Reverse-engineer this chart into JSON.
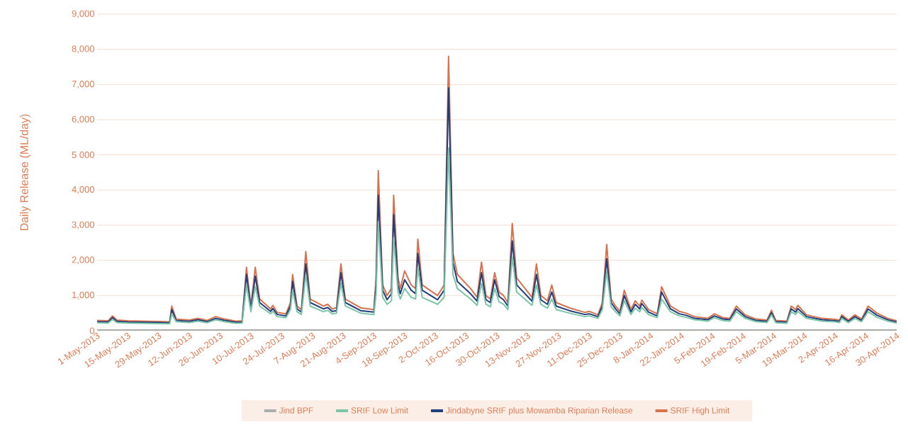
{
  "chart_data": {
    "type": "line",
    "ylabel": "Daily Release (ML/day)",
    "grid": "y",
    "legend": "bottom",
    "xlim": [
      "2013-05-01",
      "2014-04-30"
    ],
    "ylim": [
      0,
      9000
    ],
    "yticks": [
      0,
      {
        "value": 1000,
        "label": "1,000"
      },
      {
        "value": 2000,
        "label": "2,000"
      },
      {
        "value": 3000,
        "label": "3,000"
      },
      {
        "value": 4000,
        "label": "4,000"
      },
      {
        "value": 5000,
        "label": "5 000"
      },
      {
        "value": 6000,
        "label": "6,000"
      },
      {
        "value": 7000,
        "label": "7,000"
      },
      {
        "value": 8000,
        "label": "8,000"
      },
      {
        "value": 9000,
        "label": "9,000"
      }
    ],
    "xticks": [
      {
        "value": "2013-05-01",
        "label": "1-May-2013"
      },
      {
        "value": "2013-05-15",
        "label": "15-May-2013"
      },
      {
        "value": "2013-05-29",
        "label": "29-May-2013"
      },
      {
        "value": "2013-06-12",
        "label": "12-Jun-2013"
      },
      {
        "value": "2013-06-26",
        "label": "26-Jun-2013"
      },
      {
        "value": "2013-07-10",
        "label": "10-Jul-2013"
      },
      {
        "value": "2013-07-24",
        "label": "24-Jul-2013"
      },
      {
        "value": "2013-08-07",
        "label": "7-Aug-2013"
      },
      {
        "value": "2013-08-21",
        "label": "21-Aug-2013"
      },
      {
        "value": "2013-09-04",
        "label": "4-Sep-2013"
      },
      {
        "value": "2013-09-18",
        "label": "18-Sep-2013"
      },
      {
        "value": "2013-10-02",
        "label": "2-Oct-2013"
      },
      {
        "value": "2013-10-16",
        "label": "16-Oct-2013"
      },
      {
        "value": "2013-10-30",
        "label": "30-Oct-2013"
      },
      {
        "value": "2013-11-13",
        "label": "13-Nov-2013"
      },
      {
        "value": "2013-11-27",
        "label": "27-Nov-2013"
      },
      {
        "value": "2013-12-11",
        "label": "11-Dec-2013"
      },
      {
        "value": "2013-12-25",
        "label": "25-Dec-2013"
      },
      {
        "value": "2014-01-08",
        "label": "8-Jan-2014"
      },
      {
        "value": "2014-01-22",
        "label": "22-Jan-2014"
      },
      {
        "value": "2014-02-05",
        "label": "5-Feb-2014"
      },
      {
        "value": "2014-02-19",
        "label": "19-Feb-2014"
      },
      {
        "value": "2014-03-05",
        "label": "5-Mar-2014"
      },
      {
        "value": "2014-03-19",
        "label": "19-Mar-2014"
      },
      {
        "value": "2014-04-02",
        "label": "2-Apr-2014"
      },
      {
        "value": "2014-04-16",
        "label": "16-Apr-2014"
      },
      {
        "value": "2014-04-30",
        "label": "30-Apr-2014"
      }
    ],
    "x": [
      "2013-05-01",
      "2013-05-06",
      "2013-05-08",
      "2013-05-10",
      "2013-05-15",
      "2013-05-21",
      "2013-05-29",
      "2013-06-03",
      "2013-06-04",
      "2013-06-06",
      "2013-06-12",
      "2013-06-16",
      "2013-06-20",
      "2013-06-24",
      "2013-06-28",
      "2013-07-03",
      "2013-07-06",
      "2013-07-08",
      "2013-07-10",
      "2013-07-12",
      "2013-07-14",
      "2013-07-19",
      "2013-07-20",
      "2013-07-22",
      "2013-07-26",
      "2013-07-28",
      "2013-07-29",
      "2013-07-31",
      "2013-08-02",
      "2013-08-04",
      "2013-08-06",
      "2013-08-12",
      "2013-08-14",
      "2013-08-16",
      "2013-08-18",
      "2013-08-20",
      "2013-08-22",
      "2013-08-29",
      "2013-09-04",
      "2013-09-05",
      "2013-09-06",
      "2013-09-08",
      "2013-09-10",
      "2013-09-12",
      "2013-09-13",
      "2013-09-15",
      "2013-09-16",
      "2013-09-18",
      "2013-09-21",
      "2013-09-23",
      "2013-09-24",
      "2013-09-26",
      "2013-10-03",
      "2013-10-06",
      "2013-10-08",
      "2013-10-10",
      "2013-10-12",
      "2013-10-18",
      "2013-10-21",
      "2013-10-23",
      "2013-10-25",
      "2013-10-27",
      "2013-10-29",
      "2013-10-31",
      "2013-11-02",
      "2013-11-04",
      "2013-11-06",
      "2013-11-08",
      "2013-11-15",
      "2013-11-17",
      "2013-11-19",
      "2013-11-22",
      "2013-11-24",
      "2013-11-26",
      "2013-12-02",
      "2013-12-09",
      "2013-12-11",
      "2013-12-15",
      "2013-12-17",
      "2013-12-19",
      "2013-12-21",
      "2013-12-23",
      "2013-12-25",
      "2013-12-27",
      "2013-12-30",
      "2014-01-01",
      "2014-01-03",
      "2014-01-04",
      "2014-01-07",
      "2014-01-11",
      "2014-01-13",
      "2014-01-17",
      "2014-01-21",
      "2014-01-24",
      "2014-01-28",
      "2014-02-03",
      "2014-02-06",
      "2014-02-10",
      "2014-02-13",
      "2014-02-16",
      "2014-02-20",
      "2014-02-25",
      "2014-03-02",
      "2014-03-04",
      "2014-03-06",
      "2014-03-11",
      "2014-03-13",
      "2014-03-15",
      "2014-03-16",
      "2014-03-20",
      "2014-03-27",
      "2014-04-02",
      "2014-04-04",
      "2014-04-05",
      "2014-04-08",
      "2014-04-11",
      "2014-04-14",
      "2014-04-17",
      "2014-04-21",
      "2014-04-26",
      "2014-04-30"
    ],
    "series": [
      {
        "name": "Jind BPF",
        "color": "#a9aeac",
        "x": [
          "2013-05-01",
          "2014-04-30"
        ],
        "values": [
          20,
          20
        ]
      },
      {
        "name": "SRIF Low Limit",
        "color": "#7cc4a8",
        "values": [
          225,
          215,
          320,
          230,
          215,
          210,
          200,
          195,
          480,
          255,
          230,
          270,
          225,
          310,
          255,
          210,
          215,
          1300,
          540,
          1250,
          700,
          480,
          550,
          400,
          370,
          600,
          1150,
          540,
          460,
          1600,
          700,
          540,
          580,
          480,
          500,
          1350,
          700,
          500,
          460,
          1050,
          3100,
          950,
          750,
          850,
          2650,
          1100,
          900,
          1200,
          950,
          900,
          1800,
          950,
          750,
          950,
          5200,
          1600,
          1200,
          900,
          720,
          1350,
          750,
          680,
          1200,
          820,
          750,
          600,
          2100,
          1100,
          720,
          1300,
          750,
          640,
          900,
          600,
          500,
          400,
          420,
          350,
          600,
          1700,
          680,
          540,
          420,
          850,
          460,
          640,
          540,
          660,
          460,
          370,
          900,
          540,
          420,
          380,
          310,
          270,
          370,
          285,
          270,
          540,
          350,
          255,
          230,
          450,
          225,
          210,
          540,
          460,
          550,
          350,
          270,
          250,
          230,
          350,
          230,
          350,
          255,
          540,
          380,
          270,
          215
        ]
      },
      {
        "name": "Jindabyne SRIF plus Mowamba Riparian Release",
        "color": "#1f3d7a",
        "values": [
          255,
          245,
          370,
          265,
          245,
          240,
          230,
          220,
          600,
          290,
          265,
          310,
          255,
          350,
          290,
          240,
          245,
          1600,
          620,
          1550,
          800,
          550,
          630,
          460,
          420,
          700,
          1400,
          620,
          530,
          1900,
          800,
          620,
          660,
          550,
          570,
          1650,
          800,
          570,
          530,
          1300,
          3850,
          1150,
          880,
          1050,
          3300,
          1300,
          1050,
          1450,
          1150,
          1050,
          2200,
          1150,
          880,
          1150,
          6900,
          1950,
          1400,
          1050,
          840,
          1650,
          880,
          800,
          1450,
          970,
          880,
          700,
          2550,
          1300,
          840,
          1600,
          880,
          750,
          1100,
          700,
          570,
          460,
          480,
          400,
          700,
          2050,
          800,
          620,
          480,
          1000,
          530,
          750,
          620,
          770,
          530,
          420,
          1100,
          620,
          480,
          440,
          350,
          310,
          420,
          330,
          310,
          620,
          400,
          290,
          265,
          510,
          255,
          240,
          620,
          530,
          630,
          400,
          310,
          280,
          265,
          400,
          265,
          400,
          290,
          620,
          440,
          310,
          245
        ]
      },
      {
        "name": "SRIF High Limit",
        "color": "#d9714e",
        "values": [
          290,
          280,
          420,
          300,
          280,
          270,
          260,
          250,
          700,
          330,
          300,
          350,
          290,
          400,
          330,
          270,
          280,
          1800,
          700,
          1800,
          900,
          620,
          720,
          520,
          480,
          800,
          1600,
          700,
          600,
          2250,
          900,
          700,
          750,
          620,
          650,
          1900,
          900,
          650,
          600,
          1500,
          4550,
          1300,
          1000,
          1200,
          3850,
          1500,
          1200,
          1700,
          1300,
          1200,
          2600,
          1300,
          1000,
          1300,
          7800,
          2200,
          1600,
          1200,
          950,
          1950,
          1000,
          900,
          1650,
          1100,
          1000,
          800,
          3050,
          1500,
          950,
          1900,
          1000,
          850,
          1300,
          800,
          650,
          520,
          550,
          450,
          800,
          2450,
          900,
          700,
          550,
          1150,
          600,
          850,
          700,
          870,
          600,
          480,
          1250,
          700,
          550,
          500,
          400,
          350,
          480,
          370,
          350,
          700,
          450,
          330,
          300,
          580,
          290,
          270,
          700,
          600,
          720,
          450,
          350,
          320,
          300,
          450,
          300,
          450,
          330,
          700,
          500,
          350,
          280
        ]
      }
    ]
  }
}
